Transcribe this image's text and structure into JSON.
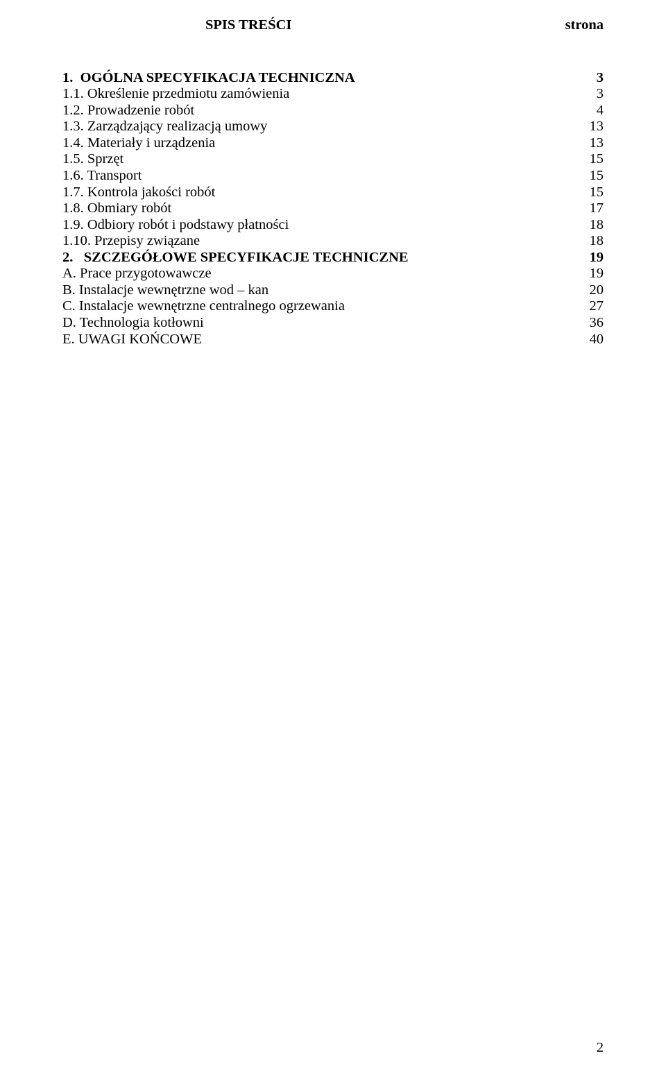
{
  "header": {
    "title": "SPIS TREŚCI",
    "right": "strona"
  },
  "toc": [
    {
      "label": "1.  OGÓLNA SPECYFIKACJA TECHNICZNA",
      "page": "3",
      "bold": true
    },
    {
      "label": "1.1. Określenie przedmiotu zamówienia",
      "page": "3",
      "bold": false
    },
    {
      "label": "1.2. Prowadzenie robót",
      "page": "4",
      "bold": false
    },
    {
      "label": "1.3. Zarządzający realizacją umowy",
      "page": "13",
      "bold": false
    },
    {
      "label": "1.4. Materiały i urządzenia",
      "page": "13",
      "bold": false
    },
    {
      "label": "1.5. Sprzęt",
      "page": "15",
      "bold": false
    },
    {
      "label": "1.6. Transport",
      "page": "15",
      "bold": false
    },
    {
      "label": "1.7. Kontrola jakości robót",
      "page": "15",
      "bold": false
    },
    {
      "label": "1.8. Obmiary robót",
      "page": "17",
      "bold": false
    },
    {
      "label": "1.9. Odbiory robót i podstawy płatności",
      "page": "18",
      "bold": false
    },
    {
      "label": "1.10. Przepisy związane",
      "page": "18",
      "bold": false
    },
    {
      "label": "2.   SZCZEGÓŁOWE SPECYFIKACJE TECHNICZNE",
      "page": "19",
      "bold": true
    },
    {
      "label": "A. Prace przygotowawcze",
      "page": "19",
      "bold": false
    },
    {
      "label": "B. Instalacje wewnętrzne wod – kan",
      "page": "20",
      "bold": false
    },
    {
      "label": "C. Instalacje wewnętrzne centralnego ogrzewania",
      "page": "27",
      "bold": false
    },
    {
      "label": "D. Technologia kotłowni",
      "page": "36",
      "bold": false
    },
    {
      "label": "E. UWAGI KOŃCOWE",
      "page": "40",
      "bold": false
    }
  ],
  "footer": {
    "page_number": "2"
  }
}
